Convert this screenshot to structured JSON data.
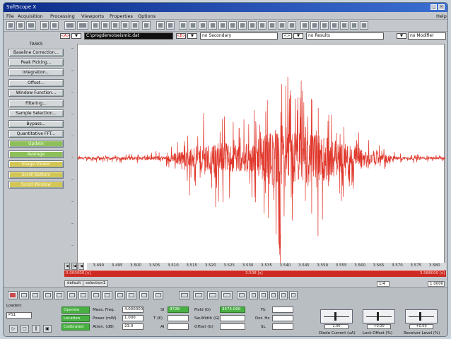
{
  "window": {
    "title": "SoftScope X"
  },
  "menu": [
    "File",
    "Acquisition",
    "Processing",
    "Viewports",
    "Properties",
    "Options",
    "Help"
  ],
  "channels": [
    {
      "value": "C:\\progdemo\\seismic.dat"
    },
    {
      "value": "no Secondary"
    },
    {
      "value": "no Results"
    },
    {
      "value": "no Modifier"
    }
  ],
  "sidebar": {
    "header": "TASKS",
    "items": [
      {
        "label": "Baseline Correction...",
        "style": "gray"
      },
      {
        "label": "Peak Picking...",
        "style": "gray"
      },
      {
        "label": "Integration...",
        "style": "gray"
      },
      {
        "label": "Offset...",
        "style": "gray"
      },
      {
        "label": "Window Function...",
        "style": "gray"
      },
      {
        "label": "Filtering...",
        "style": "gray"
      },
      {
        "label": "Sample Selection...",
        "style": "gray"
      },
      {
        "label": "Bypass...",
        "style": "gray"
      },
      {
        "label": "Quantitative FFT...",
        "style": "gray"
      },
      {
        "label": "Update",
        "style": "green"
      },
      {
        "label": "Average",
        "style": "green"
      },
      {
        "label": "Image Viewer",
        "style": "yellow"
      },
      {
        "label": "Scroll Bottom",
        "style": "yellow"
      },
      {
        "label": "Scroll Window",
        "style": "yellow"
      }
    ]
  },
  "chart_data": {
    "type": "line",
    "series": [
      {
        "color": "#e0362a"
      }
    ],
    "x_ticks": [
      "3.490",
      "3.495",
      "3.500",
      "3.505",
      "3.510",
      "3.515",
      "3.520",
      "3.525",
      "3.530",
      "3.535",
      "3.540",
      "3.545",
      "3.550",
      "3.555",
      "3.560",
      "3.565",
      "3.570",
      "3.575",
      "3.580"
    ],
    "x_range": [
      3.4875,
      3.5825
    ],
    "y_range": [
      -1,
      1
    ],
    "baseline": 0,
    "note": "",
    "envelope": [
      [
        3.4875,
        0.03
      ],
      [
        3.51,
        0.06
      ],
      [
        3.515,
        0.22
      ],
      [
        3.52,
        0.35
      ],
      [
        3.525,
        0.45
      ],
      [
        3.53,
        0.35
      ],
      [
        3.535,
        0.55
      ],
      [
        3.54,
        0.95
      ],
      [
        3.545,
        0.7
      ],
      [
        3.55,
        0.65
      ],
      [
        3.555,
        0.45
      ],
      [
        3.56,
        0.28
      ],
      [
        3.565,
        0.15
      ],
      [
        3.57,
        0.05
      ],
      [
        3.5825,
        0.03
      ]
    ]
  },
  "scrollbar": {
    "left_label": "0.000000 [s]",
    "center_label": "3.508 [s]",
    "right_label": "3.588000 [s]"
  },
  "tabs": [
    "default",
    "selection1"
  ],
  "status": {
    "page": "1/4",
    "right": "1.0000"
  },
  "bottom": {
    "label_left": "Loaded:",
    "select_value": "PS1",
    "state_buttons": [
      "Operate",
      "Location",
      "Calibrated"
    ],
    "fields": [
      {
        "label": "Meas. Freq.",
        "value": "4.000000"
      },
      {
        "label": "Power (mW)",
        "value": "1.000"
      },
      {
        "label": "Atten. (dB)",
        "value": "23.0"
      },
      {
        "label": "SI",
        "value": "9728"
      },
      {
        "label": "T (K)",
        "value": ""
      },
      {
        "label": "AI",
        "value": ""
      },
      {
        "label": "Field (G)",
        "value": "3475.000"
      },
      {
        "label": "Sw.Width (G)",
        "value": ""
      },
      {
        "label": "Offset (G)",
        "value": ""
      },
      {
        "label": "Fb",
        "value": ""
      },
      {
        "label": "Det. Hz",
        "value": ""
      },
      {
        "label": "SL",
        "value": ""
      }
    ],
    "sliders": [
      {
        "label": "Diode Current (uA)",
        "value": "1.00"
      },
      {
        "label": "Lock Offset (%)",
        "value": "+0.00"
      },
      {
        "label": "Receiver Level (%)",
        "value": "+0.00"
      }
    ]
  }
}
